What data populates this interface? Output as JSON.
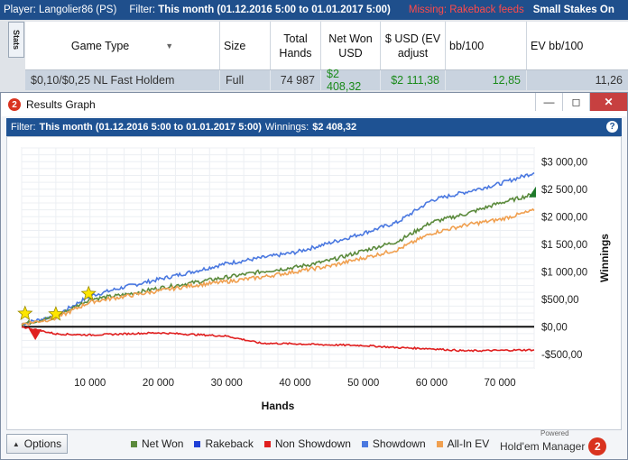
{
  "topbar": {
    "player_label": "Player:",
    "player_name": "Langolier86 (PS)",
    "filter_label": "Filter:",
    "filter_value": "This month (01.12.2016 5:00 to 01.01.2017 5:00)",
    "warning_text": "Missing: Rakeback feeds",
    "stakes_text": "Small Stakes On"
  },
  "stats_tab": "Stats",
  "table": {
    "headers": [
      "Game Type",
      "Size",
      "Total Hands",
      "Net Won USD",
      "$ USD (EV adjust",
      "bb/100",
      "EV bb/100"
    ],
    "row": [
      "$0,10/$0,25 NL Fast Holdem",
      "Full",
      "74 987",
      "$2 408,32",
      "$2 111,38",
      "12,85",
      "11,26"
    ]
  },
  "window": {
    "title": "Results Graph",
    "filter_label": "Filter:",
    "filter_value": "This month (01.12.2016 5:00 to 01.01.2017 5:00)",
    "winnings_label": "Winnings:",
    "winnings_value": "$2 408,32",
    "options_label": "Options",
    "brand": "Hold'em Manager",
    "brand_badge": "2",
    "powered": "Powered"
  },
  "legend": [
    {
      "name": "Net Won",
      "color": "#5b8a3c"
    },
    {
      "name": "Rakeback",
      "color": "#1f3fd6"
    },
    {
      "name": "Non Showdown",
      "color": "#e01f1f"
    },
    {
      "name": "Showdown",
      "color": "#4a78e0"
    },
    {
      "name": "All-In EV",
      "color": "#f0a050"
    }
  ],
  "chart_data": {
    "type": "line",
    "xlabel": "Hands",
    "ylabel": "Winnings",
    "xlim": [
      0,
      75000
    ],
    "ylim": [
      -750,
      3250
    ],
    "x_ticks": [
      10000,
      20000,
      30000,
      40000,
      50000,
      60000,
      70000
    ],
    "x_tick_labels": [
      "10 000",
      "20 000",
      "30 000",
      "40 000",
      "50 000",
      "60 000",
      "70 000"
    ],
    "y_ticks": [
      3000,
      2500,
      2000,
      1500,
      1000,
      500,
      0,
      -500
    ],
    "y_tick_labels": [
      "$3 000,00",
      "$2 500,00",
      "$2 000,00",
      "$1 500,00",
      "$1 000,00",
      "$500,00",
      "$0,00",
      "-$500,00"
    ],
    "grid": true,
    "series": [
      {
        "name": "Showdown",
        "x": [
          0,
          5000,
          10000,
          15000,
          20000,
          25000,
          30000,
          35000,
          40000,
          45000,
          50000,
          55000,
          60000,
          65000,
          70000,
          75000
        ],
        "values": [
          50,
          200,
          560,
          720,
          860,
          1000,
          1150,
          1250,
          1350,
          1520,
          1700,
          1900,
          2300,
          2450,
          2600,
          2800
        ]
      },
      {
        "name": "Net Won",
        "x": [
          0,
          5000,
          10000,
          15000,
          20000,
          25000,
          30000,
          35000,
          40000,
          45000,
          50000,
          55000,
          60000,
          65000,
          70000,
          75000
        ],
        "values": [
          50,
          180,
          500,
          580,
          700,
          800,
          900,
          1000,
          1080,
          1200,
          1380,
          1550,
          1900,
          2050,
          2250,
          2408
        ]
      },
      {
        "name": "All-In EV",
        "x": [
          0,
          5000,
          10000,
          15000,
          20000,
          25000,
          30000,
          35000,
          40000,
          45000,
          50000,
          55000,
          60000,
          65000,
          70000,
          75000
        ],
        "values": [
          50,
          150,
          450,
          550,
          650,
          750,
          820,
          900,
          1000,
          1100,
          1250,
          1400,
          1700,
          1850,
          1950,
          2111
        ]
      },
      {
        "name": "Non Showdown",
        "x": [
          0,
          5000,
          10000,
          15000,
          20000,
          25000,
          30000,
          35000,
          40000,
          45000,
          50000,
          55000,
          60000,
          65000,
          70000,
          75000
        ],
        "values": [
          0,
          -130,
          -150,
          -130,
          -110,
          -140,
          -170,
          -300,
          -310,
          -330,
          -340,
          -380,
          -400,
          -440,
          -430,
          -420
        ]
      },
      {
        "name": "Rakeback",
        "x": [
          0,
          75000
        ],
        "values": [
          0,
          0
        ]
      }
    ],
    "markers": [
      {
        "type": "star",
        "x": 500,
        "y": 240
      },
      {
        "type": "star",
        "x": 5000,
        "y": 230
      },
      {
        "type": "star",
        "x": 9800,
        "y": 600
      },
      {
        "type": "triangle-down",
        "x": 2000,
        "y": -130
      },
      {
        "type": "triangle-up",
        "x": 75000,
        "y": 2450
      }
    ]
  }
}
